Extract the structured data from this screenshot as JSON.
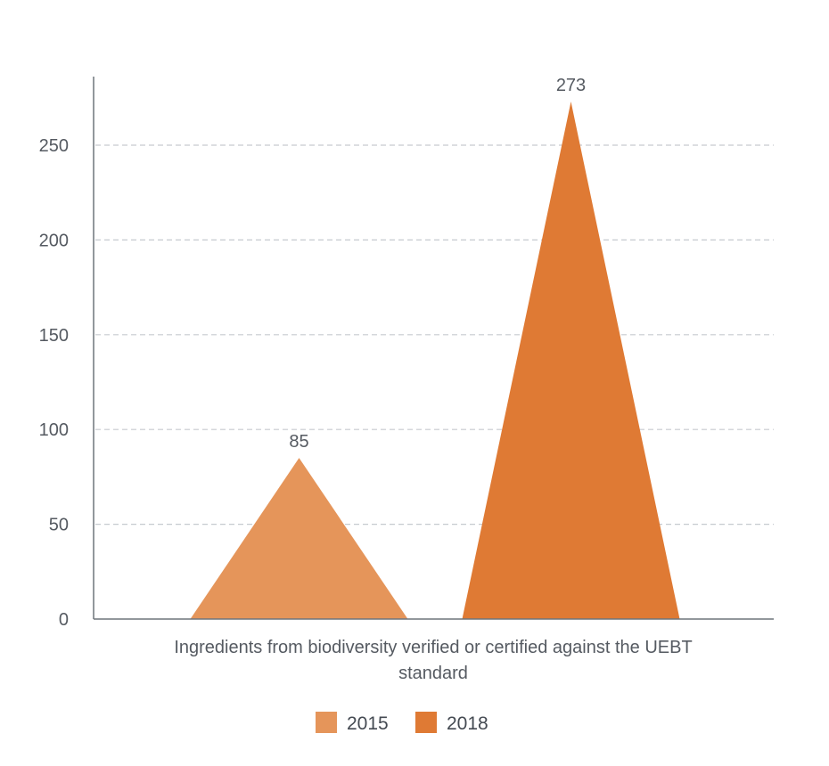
{
  "chart_data": {
    "type": "bar",
    "shape": "triangle",
    "categories": [
      "Ingredients from biodiversity verified or certified against the UEBT standard"
    ],
    "category_label_lines": [
      "Ingredients from biodiversity verified or certified against the UEBT",
      "standard"
    ],
    "series": [
      {
        "name": "2015",
        "values": [
          85
        ],
        "color": "#e5955a"
      },
      {
        "name": "2018",
        "values": [
          273
        ],
        "color": "#df7a34"
      }
    ],
    "ylim": [
      0,
      280
    ],
    "yticks": [
      0,
      50,
      100,
      150,
      200,
      250
    ],
    "grid": true,
    "legend_position": "bottom",
    "data_labels": [
      "85",
      "273"
    ]
  }
}
